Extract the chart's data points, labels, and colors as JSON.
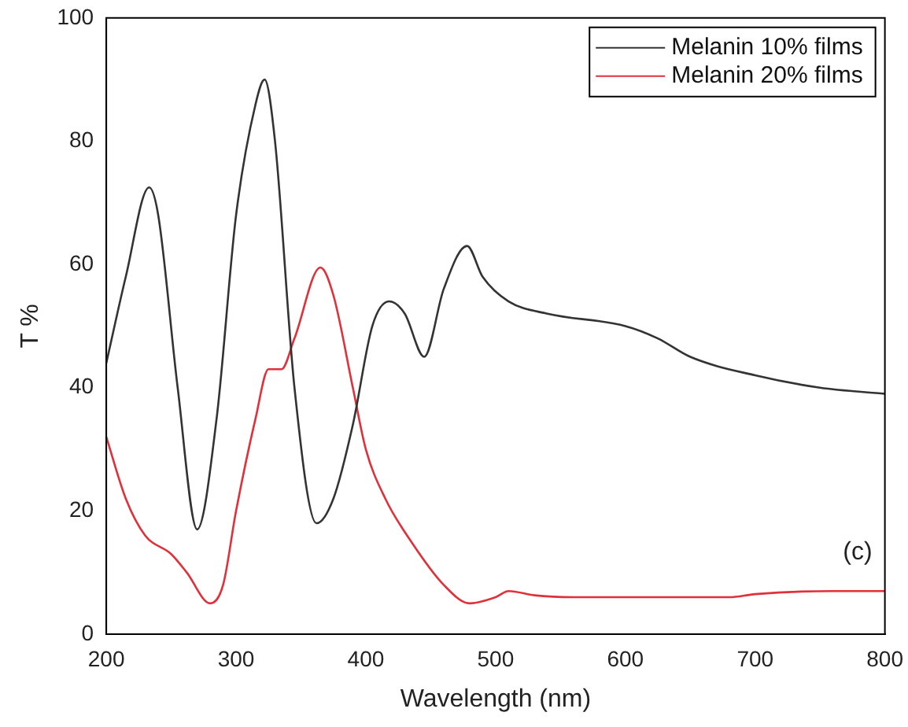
{
  "chart_data": {
    "type": "line",
    "xlabel": "Wavelength (nm)",
    "ylabel": "T %",
    "xlim": [
      200,
      800
    ],
    "xticks": [
      200,
      300,
      400,
      500,
      600,
      700,
      800
    ],
    "ylim": [
      0,
      100
    ],
    "yticks": [
      0,
      20,
      40,
      60,
      80,
      100
    ],
    "grid": false,
    "legend": "top right",
    "marker": "none",
    "line_style": "solid",
    "annotations": [
      "(c)"
    ],
    "series": [
      {
        "name": "Melanin 10% films",
        "color": "#333333",
        "x": [
          200,
          215,
          233,
          240,
          255,
          270,
          285,
          300,
          315,
          322,
          330,
          345,
          362,
          375,
          390,
          405,
          418,
          430,
          445,
          460,
          478,
          490,
          510,
          540,
          600,
          625,
          650,
          700,
          750,
          800
        ],
        "values": [
          44,
          58,
          72.5,
          68,
          40,
          17,
          35,
          68,
          86,
          90,
          80,
          40,
          18,
          22,
          34,
          50,
          54,
          52,
          45,
          56,
          63,
          58,
          54,
          52,
          50,
          48,
          45,
          42,
          40,
          39
        ]
      },
      {
        "name": "Melanin 20% films",
        "color": "#e0303a",
        "x": [
          200,
          215,
          230,
          250,
          262,
          280,
          290,
          300,
          315,
          325,
          335,
          345,
          365,
          375,
          390,
          400,
          415,
          435,
          460,
          480,
          500,
          510,
          530,
          560,
          600,
          680,
          700,
          760,
          800
        ],
        "values": [
          32,
          22,
          16,
          13,
          10,
          5,
          8,
          20,
          35,
          43,
          43,
          48,
          59.5,
          55,
          40,
          30,
          22,
          15,
          8,
          5,
          6,
          7,
          6.3,
          6,
          6,
          6,
          6.5,
          7,
          7
        ]
      }
    ]
  }
}
